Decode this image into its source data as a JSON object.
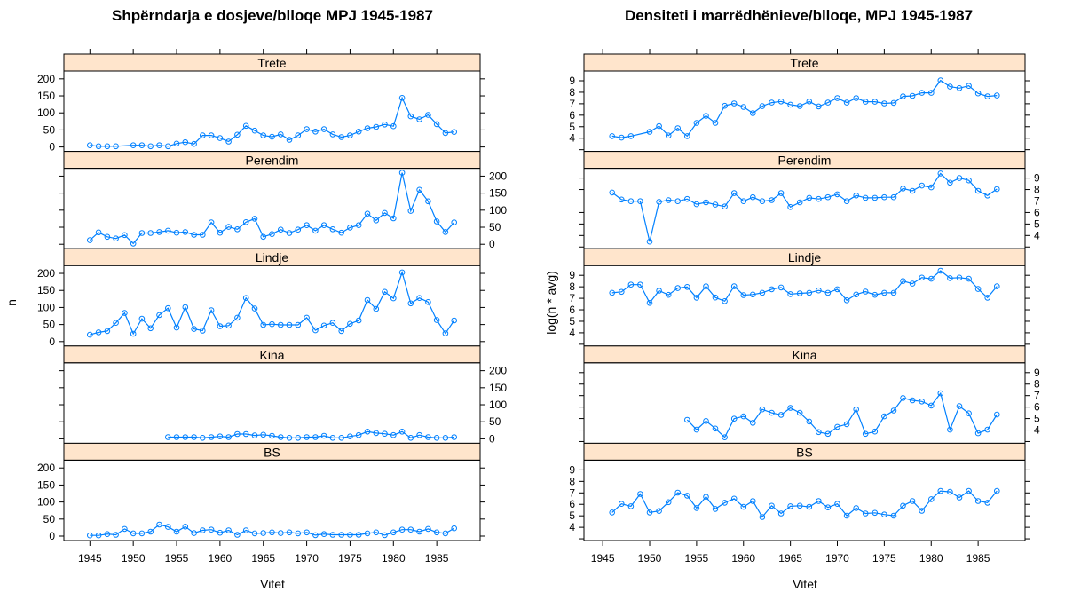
{
  "chart_data": [
    {
      "type": "line",
      "title": "Shpërndarja e dosjeve/blloqe MPJ 1945-1987",
      "xlabel": "Vitet",
      "ylabel": "n",
      "xlim": [
        1942,
        1990
      ],
      "ylim": [
        -13,
        223
      ],
      "x_ticks": [
        1945,
        1950,
        1955,
        1960,
        1965,
        1970,
        1975,
        1980,
        1985
      ],
      "y_ticks": [
        0,
        50,
        100,
        150,
        200
      ],
      "marker": "circle",
      "color": "#0080ff",
      "strip_color": "#ffe5cc",
      "panels": [
        {
          "name": "Trete",
          "x": [
            1945,
            1946,
            1947,
            1948,
            1950,
            1951,
            1952,
            1953,
            1954,
            1955,
            1956,
            1957,
            1958,
            1959,
            1960,
            1961,
            1962,
            1963,
            1964,
            1965,
            1966,
            1967,
            1968,
            1969,
            1970,
            1971,
            1972,
            1973,
            1974,
            1975,
            1976,
            1977,
            1978,
            1979,
            1980,
            1981,
            1982,
            1983,
            1984,
            1985,
            1986,
            1987
          ],
          "y": [
            5,
            2,
            2,
            2,
            5,
            5,
            2,
            5,
            2,
            10,
            14,
            9,
            34,
            34,
            26,
            16,
            36,
            62,
            48,
            34,
            30,
            37,
            21,
            34,
            52,
            45,
            52,
            37,
            29,
            34,
            45,
            55,
            59,
            66,
            61,
            144,
            90,
            81,
            94,
            67,
            41,
            44
          ]
        },
        {
          "name": "Perendim",
          "x": [
            1945,
            1946,
            1947,
            1948,
            1949,
            1950,
            1951,
            1952,
            1953,
            1954,
            1955,
            1956,
            1957,
            1958,
            1959,
            1960,
            1961,
            1962,
            1963,
            1964,
            1965,
            1966,
            1967,
            1968,
            1969,
            1970,
            1971,
            1972,
            1973,
            1974,
            1975,
            1976,
            1977,
            1978,
            1979,
            1980,
            1981,
            1982,
            1983,
            1984,
            1985,
            1986,
            1987
          ],
          "y": [
            12,
            35,
            22,
            17,
            27,
            2,
            33,
            33,
            36,
            40,
            34,
            36,
            28,
            28,
            64,
            34,
            51,
            44,
            65,
            75,
            22,
            30,
            43,
            33,
            43,
            56,
            40,
            56,
            44,
            34,
            49,
            56,
            90,
            70,
            92,
            76,
            210,
            98,
            160,
            126,
            67,
            36,
            64
          ]
        },
        {
          "name": "Lindje",
          "x": [
            1945,
            1946,
            1947,
            1948,
            1949,
            1950,
            1951,
            1952,
            1953,
            1954,
            1955,
            1956,
            1957,
            1958,
            1959,
            1960,
            1961,
            1962,
            1963,
            1964,
            1965,
            1966,
            1967,
            1968,
            1969,
            1970,
            1971,
            1972,
            1973,
            1974,
            1975,
            1976,
            1977,
            1978,
            1979,
            1980,
            1981,
            1982,
            1983,
            1984,
            1985,
            1986,
            1987
          ],
          "y": [
            20,
            27,
            31,
            55,
            84,
            23,
            67,
            39,
            78,
            98,
            41,
            101,
            37,
            32,
            92,
            45,
            47,
            70,
            128,
            97,
            49,
            51,
            49,
            49,
            49,
            70,
            33,
            47,
            55,
            31,
            52,
            62,
            122,
            96,
            146,
            127,
            203,
            112,
            128,
            116,
            63,
            24,
            62
          ]
        },
        {
          "name": "Kina",
          "x": [
            1954,
            1955,
            1956,
            1957,
            1958,
            1959,
            1960,
            1961,
            1962,
            1963,
            1964,
            1965,
            1966,
            1967,
            1968,
            1969,
            1970,
            1971,
            1972,
            1973,
            1974,
            1975,
            1976,
            1977,
            1978,
            1979,
            1980,
            1981,
            1982,
            1983,
            1984,
            1985,
            1986,
            1987
          ],
          "y": [
            5,
            5,
            5,
            5,
            3,
            5,
            7,
            5,
            14,
            14,
            10,
            12,
            9,
            5,
            3,
            3,
            5,
            5,
            9,
            3,
            3,
            7,
            11,
            21,
            17,
            15,
            11,
            21,
            3,
            11,
            5,
            3,
            3,
            5
          ]
        },
        {
          "name": "BS",
          "x": [
            1945,
            1946,
            1947,
            1948,
            1949,
            1950,
            1951,
            1952,
            1953,
            1954,
            1955,
            1956,
            1957,
            1958,
            1959,
            1960,
            1961,
            1962,
            1963,
            1964,
            1965,
            1966,
            1967,
            1968,
            1969,
            1970,
            1971,
            1972,
            1973,
            1974,
            1975,
            1976,
            1977,
            1978,
            1979,
            1980,
            1981,
            1982,
            1983,
            1984,
            1985,
            1986,
            1987
          ],
          "y": [
            2,
            2,
            6,
            4,
            21,
            8,
            8,
            13,
            34,
            27,
            13,
            28,
            9,
            17,
            19,
            10,
            17,
            4,
            17,
            8,
            9,
            11,
            9,
            11,
            8,
            11,
            3,
            6,
            4,
            4,
            4,
            4,
            8,
            11,
            3,
            11,
            19,
            19,
            13,
            21,
            11,
            8,
            23
          ]
        }
      ]
    },
    {
      "type": "line",
      "title": "Densiteti i marrëdhënieve/blloqe, MPJ 1945-1987",
      "xlabel": "Vitet",
      "ylabel": "log(n * avg)",
      "xlim": [
        1943,
        1990
      ],
      "ylim": [
        2.85,
        9.85
      ],
      "x_ticks": [
        1945,
        1950,
        1955,
        1960,
        1965,
        1970,
        1975,
        1980,
        1985
      ],
      "y_ticks": [
        4,
        5,
        6,
        7,
        8,
        9
      ],
      "marker": "circle",
      "color": "#0080ff",
      "strip_color": "#ffe5cc",
      "panels": [
        {
          "name": "Trete",
          "x": [
            1946,
            1947,
            1948,
            1950,
            1951,
            1952,
            1953,
            1954,
            1955,
            1956,
            1957,
            1958,
            1959,
            1960,
            1961,
            1962,
            1963,
            1964,
            1965,
            1966,
            1967,
            1968,
            1969,
            1970,
            1971,
            1972,
            1973,
            1974,
            1975,
            1976,
            1977,
            1978,
            1979,
            1980,
            1981,
            1982,
            1983,
            1984,
            1985,
            1986,
            1987
          ],
          "y": [
            4.18,
            4.05,
            4.18,
            4.56,
            5.05,
            4.23,
            4.87,
            4.18,
            5.33,
            5.95,
            5.33,
            6.82,
            7.03,
            6.72,
            6.18,
            6.79,
            7.1,
            7.2,
            6.92,
            6.8,
            7.2,
            6.77,
            7.1,
            7.49,
            7.1,
            7.49,
            7.18,
            7.18,
            7.03,
            7.08,
            7.64,
            7.69,
            7.95,
            7.95,
            9.03,
            8.49,
            8.36,
            8.56,
            7.9,
            7.64,
            7.72
          ]
        },
        {
          "name": "Perendim",
          "x": [
            1946,
            1947,
            1948,
            1949,
            1950,
            1951,
            1952,
            1953,
            1954,
            1955,
            1956,
            1957,
            1958,
            1959,
            1960,
            1961,
            1962,
            1963,
            1964,
            1965,
            1966,
            1967,
            1968,
            1969,
            1970,
            1971,
            1972,
            1973,
            1974,
            1975,
            1976,
            1977,
            1978,
            1979,
            1980,
            1981,
            1982,
            1983,
            1984,
            1985,
            1986,
            1987
          ],
          "y": [
            7.74,
            7.13,
            6.98,
            6.98,
            3.47,
            6.93,
            7.08,
            6.98,
            7.18,
            6.72,
            6.88,
            6.68,
            6.52,
            7.69,
            6.98,
            7.33,
            6.98,
            7.08,
            7.69,
            6.47,
            6.88,
            7.28,
            7.18,
            7.33,
            7.59,
            6.98,
            7.48,
            7.28,
            7.28,
            7.33,
            7.33,
            8.09,
            7.89,
            8.34,
            8.19,
            9.4,
            8.6,
            9.0,
            8.8,
            7.89,
            7.48,
            8.04
          ]
        },
        {
          "name": "Lindje",
          "x": [
            1946,
            1947,
            1948,
            1949,
            1950,
            1951,
            1952,
            1953,
            1954,
            1955,
            1956,
            1957,
            1958,
            1959,
            1960,
            1961,
            1962,
            1963,
            1964,
            1965,
            1966,
            1967,
            1968,
            1969,
            1970,
            1971,
            1972,
            1973,
            1974,
            1975,
            1976,
            1977,
            1978,
            1979,
            1980,
            1981,
            1982,
            1983,
            1984,
            1985,
            1986,
            1987
          ],
          "y": [
            7.48,
            7.56,
            8.19,
            8.19,
            6.6,
            7.66,
            7.3,
            7.89,
            7.99,
            7.05,
            8.04,
            7.07,
            6.75,
            8.04,
            7.28,
            7.33,
            7.48,
            7.79,
            7.94,
            7.36,
            7.43,
            7.48,
            7.69,
            7.48,
            7.79,
            6.83,
            7.33,
            7.59,
            7.3,
            7.48,
            7.48,
            8.5,
            8.27,
            8.8,
            8.7,
            9.4,
            8.75,
            8.8,
            8.7,
            7.81,
            7.05,
            8.04
          ]
        },
        {
          "name": "Kina",
          "x": [
            1954,
            1955,
            1956,
            1957,
            1958,
            1959,
            1960,
            1961,
            1962,
            1963,
            1964,
            1965,
            1966,
            1967,
            1968,
            1969,
            1970,
            1971,
            1972,
            1973,
            1974,
            1975,
            1976,
            1977,
            1978,
            1979,
            1980,
            1981,
            1982,
            1983,
            1984,
            1985,
            1986,
            1987
          ],
          "y": [
            4.89,
            4.03,
            4.79,
            4.13,
            3.37,
            4.99,
            5.19,
            4.63,
            5.8,
            5.5,
            5.32,
            5.93,
            5.5,
            4.74,
            3.82,
            3.67,
            4.28,
            4.51,
            5.8,
            3.67,
            3.87,
            5.19,
            5.7,
            6.79,
            6.59,
            6.49,
            6.13,
            7.2,
            4.03,
            6.08,
            5.45,
            3.72,
            4.03,
            5.35
          ]
        },
        {
          "name": "BS",
          "x": [
            1946,
            1947,
            1948,
            1949,
            1950,
            1951,
            1952,
            1953,
            1954,
            1955,
            1956,
            1957,
            1958,
            1959,
            1960,
            1961,
            1962,
            1963,
            1964,
            1965,
            1966,
            1967,
            1968,
            1969,
            1970,
            1971,
            1972,
            1973,
            1974,
            1975,
            1976,
            1977,
            1978,
            1979,
            1980,
            1981,
            1982,
            1983,
            1984,
            1985,
            1986,
            1987
          ],
          "y": [
            5.29,
            6.04,
            5.83,
            6.91,
            5.29,
            5.42,
            6.19,
            7.02,
            6.76,
            5.68,
            6.66,
            5.6,
            6.14,
            6.5,
            5.78,
            6.29,
            4.9,
            5.88,
            5.21,
            5.83,
            5.88,
            5.78,
            6.29,
            5.73,
            6.04,
            5.01,
            5.68,
            5.21,
            5.26,
            5.11,
            5.01,
            5.88,
            6.29,
            5.44,
            6.45,
            7.17,
            7.09,
            6.6,
            7.17,
            6.29,
            6.14,
            7.17
          ]
        }
      ]
    }
  ]
}
